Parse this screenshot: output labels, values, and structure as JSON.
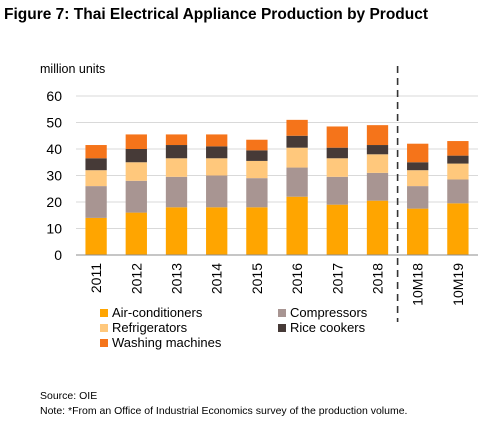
{
  "title": "Figure 7: Thai Electrical Appliance Production by Product",
  "source_note": "Source: OIE",
  "footnote": "Note: *From an Office of Industrial Economics survey of the production volume.",
  "chart_data": {
    "type": "bar",
    "stacked": true,
    "ylabel": "million units",
    "ylim": [
      0,
      60
    ],
    "yticks": [
      0,
      10,
      20,
      30,
      40,
      50,
      60
    ],
    "grid": true,
    "legend_position": "bottom",
    "categories": [
      "2011",
      "2012",
      "2013",
      "2014",
      "2015",
      "2016",
      "2017",
      "2018",
      "10M18",
      "10M19"
    ],
    "divider_after": "2018",
    "series": [
      {
        "name": "Air-conditioners",
        "color": "#FFA500",
        "values": [
          14,
          16,
          18,
          18,
          18,
          22,
          19,
          20.5,
          17.5,
          19.5
        ]
      },
      {
        "name": "Compressors",
        "color": "#A89592",
        "values": [
          12,
          12,
          11.5,
          12,
          11,
          11,
          10.5,
          10.5,
          8.5,
          9
        ]
      },
      {
        "name": "Refrigerators",
        "color": "#FFC87C",
        "values": [
          6,
          7,
          7,
          6.5,
          6.5,
          7.5,
          7,
          7,
          6,
          6
        ]
      },
      {
        "name": "Rice cookers",
        "color": "#463A37",
        "values": [
          4.5,
          5,
          5,
          4.5,
          4,
          4.5,
          4,
          3.5,
          3,
          3
        ]
      },
      {
        "name": "Washing machines",
        "color": "#F5741A",
        "values": [
          5,
          5.5,
          4,
          4.5,
          4,
          6,
          8,
          7.5,
          7,
          5.5
        ]
      }
    ]
  }
}
